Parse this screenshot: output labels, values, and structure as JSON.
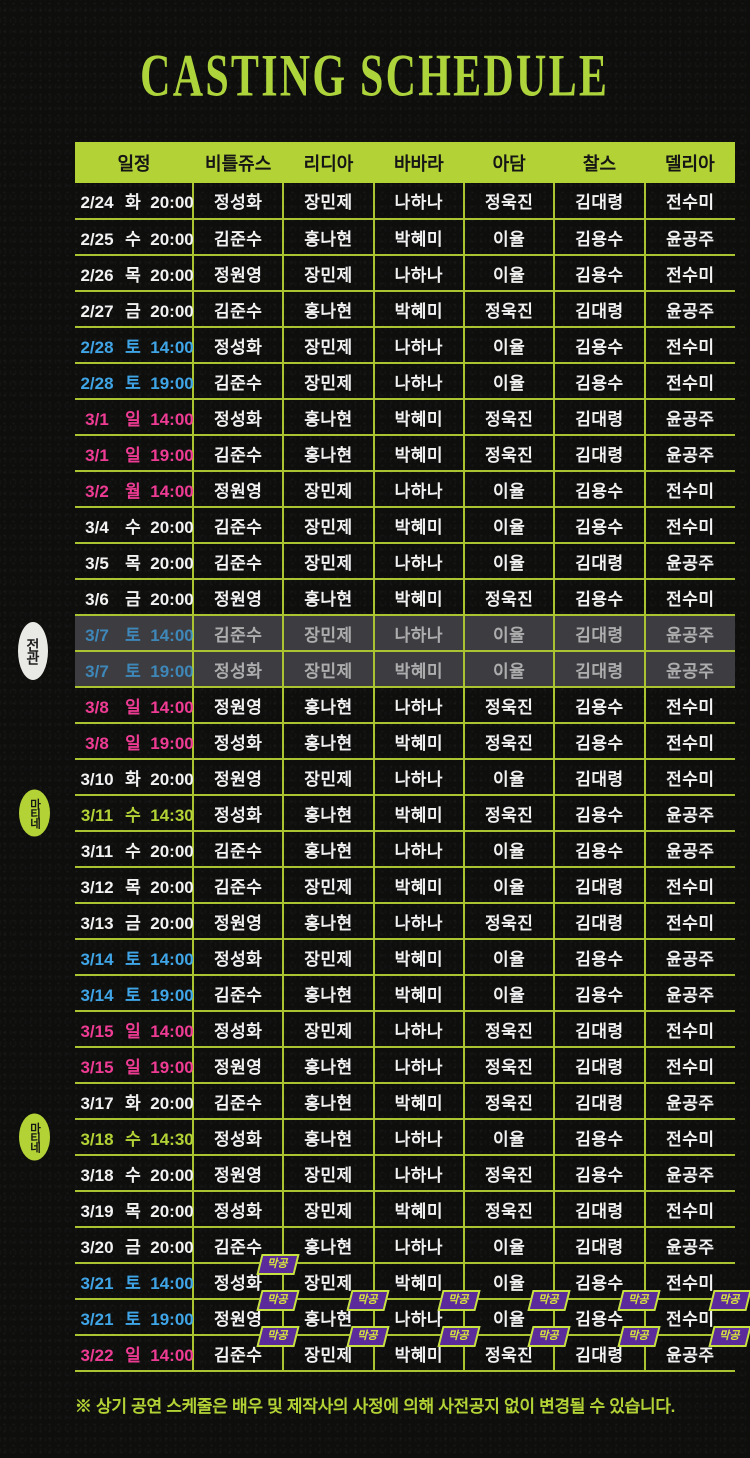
{
  "title": "CASTING SCHEDULE",
  "footer": "※ 상기 공연 스케줄은 배우 및 제작사의 사정에 의해 사전공지 없이 변경될 수 있습니다.",
  "badges": {
    "last_show": "막공"
  },
  "side_badges": [
    {
      "type": "soldout",
      "label": "전관",
      "row": 12,
      "row_span": 2
    },
    {
      "type": "matinee",
      "label": "마티네",
      "row": 17,
      "row_span": 1
    },
    {
      "type": "matinee",
      "label": "마티네",
      "row": 26,
      "row_span": 1
    }
  ],
  "colors": {
    "background": "#0e0e0d",
    "lime": "#b2d235",
    "grid_line": "#a9c430",
    "title_text": "#aed43c",
    "weekday_white": "#f2f2f2",
    "saturday_blue": "#3fa5e6",
    "sunday_pink": "#ee3b93",
    "soldout_row_bg": "#3c3c41",
    "last_show_purple": "#5b2a9b"
  },
  "table": {
    "columns": [
      "일정",
      "비틀쥬스",
      "리디아",
      "바바라",
      "아담",
      "찰스",
      "델리아"
    ],
    "rows": [
      {
        "date": "2/24",
        "day": "화",
        "time": "20:00",
        "color": "white",
        "cast": [
          "정성화",
          "장민제",
          "나하나",
          "정욱진",
          "김대령",
          "전수미"
        ]
      },
      {
        "date": "2/25",
        "day": "수",
        "time": "20:00",
        "color": "white",
        "cast": [
          "김준수",
          "홍나현",
          "박혜미",
          "이율",
          "김용수",
          "윤공주"
        ]
      },
      {
        "date": "2/26",
        "day": "목",
        "time": "20:00",
        "color": "white",
        "cast": [
          "정원영",
          "장민제",
          "나하나",
          "이율",
          "김용수",
          "전수미"
        ]
      },
      {
        "date": "2/27",
        "day": "금",
        "time": "20:00",
        "color": "white",
        "cast": [
          "김준수",
          "홍나현",
          "박혜미",
          "정욱진",
          "김대령",
          "윤공주"
        ]
      },
      {
        "date": "2/28",
        "day": "토",
        "time": "14:00",
        "color": "blue",
        "cast": [
          "정성화",
          "장민제",
          "나하나",
          "이율",
          "김용수",
          "전수미"
        ]
      },
      {
        "date": "2/28",
        "day": "토",
        "time": "19:00",
        "color": "blue",
        "cast": [
          "김준수",
          "장민제",
          "나하나",
          "이율",
          "김용수",
          "전수미"
        ]
      },
      {
        "date": "3/1",
        "day": "일",
        "time": "14:00",
        "color": "pink",
        "cast": [
          "정성화",
          "홍나현",
          "박혜미",
          "정욱진",
          "김대령",
          "윤공주"
        ]
      },
      {
        "date": "3/1",
        "day": "일",
        "time": "19:00",
        "color": "pink",
        "cast": [
          "김준수",
          "홍나현",
          "박혜미",
          "정욱진",
          "김대령",
          "윤공주"
        ]
      },
      {
        "date": "3/2",
        "day": "월",
        "time": "14:00",
        "color": "pink",
        "cast": [
          "정원영",
          "장민제",
          "나하나",
          "이율",
          "김용수",
          "전수미"
        ]
      },
      {
        "date": "3/4",
        "day": "수",
        "time": "20:00",
        "color": "white",
        "cast": [
          "김준수",
          "장민제",
          "박혜미",
          "이율",
          "김용수",
          "전수미"
        ]
      },
      {
        "date": "3/5",
        "day": "목",
        "time": "20:00",
        "color": "white",
        "cast": [
          "김준수",
          "장민제",
          "나하나",
          "이율",
          "김대령",
          "윤공주"
        ]
      },
      {
        "date": "3/6",
        "day": "금",
        "time": "20:00",
        "color": "white",
        "cast": [
          "정원영",
          "홍나현",
          "박혜미",
          "정욱진",
          "김용수",
          "전수미"
        ]
      },
      {
        "date": "3/7",
        "day": "토",
        "time": "14:00",
        "color": "blue",
        "soldout": true,
        "cast": [
          "김준수",
          "장민제",
          "나하나",
          "이율",
          "김대령",
          "윤공주"
        ]
      },
      {
        "date": "3/7",
        "day": "토",
        "time": "19:00",
        "color": "blue",
        "soldout": true,
        "cast": [
          "정성화",
          "장민제",
          "박혜미",
          "이율",
          "김대령",
          "윤공주"
        ]
      },
      {
        "date": "3/8",
        "day": "일",
        "time": "14:00",
        "color": "pink",
        "cast": [
          "정원영",
          "홍나현",
          "나하나",
          "정욱진",
          "김용수",
          "전수미"
        ]
      },
      {
        "date": "3/8",
        "day": "일",
        "time": "19:00",
        "color": "pink",
        "cast": [
          "정성화",
          "홍나현",
          "박혜미",
          "정욱진",
          "김용수",
          "전수미"
        ]
      },
      {
        "date": "3/10",
        "day": "화",
        "time": "20:00",
        "color": "white",
        "cast": [
          "정원영",
          "장민제",
          "나하나",
          "이율",
          "김대령",
          "전수미"
        ]
      },
      {
        "date": "3/11",
        "day": "수",
        "time": "14:30",
        "color": "lime",
        "cast": [
          "정성화",
          "홍나현",
          "박혜미",
          "정욱진",
          "김용수",
          "윤공주"
        ]
      },
      {
        "date": "3/11",
        "day": "수",
        "time": "20:00",
        "color": "white",
        "cast": [
          "김준수",
          "홍나현",
          "나하나",
          "이율",
          "김용수",
          "윤공주"
        ]
      },
      {
        "date": "3/12",
        "day": "목",
        "time": "20:00",
        "color": "white",
        "cast": [
          "김준수",
          "장민제",
          "박혜미",
          "이율",
          "김대령",
          "전수미"
        ]
      },
      {
        "date": "3/13",
        "day": "금",
        "time": "20:00",
        "color": "white",
        "cast": [
          "정원영",
          "홍나현",
          "나하나",
          "정욱진",
          "김대령",
          "전수미"
        ]
      },
      {
        "date": "3/14",
        "day": "토",
        "time": "14:00",
        "color": "blue",
        "cast": [
          "정성화",
          "장민제",
          "박혜미",
          "이율",
          "김용수",
          "윤공주"
        ]
      },
      {
        "date": "3/14",
        "day": "토",
        "time": "19:00",
        "color": "blue",
        "cast": [
          "김준수",
          "홍나현",
          "박혜미",
          "이율",
          "김용수",
          "윤공주"
        ]
      },
      {
        "date": "3/15",
        "day": "일",
        "time": "14:00",
        "color": "pink",
        "cast": [
          "정성화",
          "장민제",
          "나하나",
          "정욱진",
          "김대령",
          "전수미"
        ]
      },
      {
        "date": "3/15",
        "day": "일",
        "time": "19:00",
        "color": "pink",
        "cast": [
          "정원영",
          "홍나현",
          "나하나",
          "정욱진",
          "김대령",
          "전수미"
        ]
      },
      {
        "date": "3/17",
        "day": "화",
        "time": "20:00",
        "color": "white",
        "cast": [
          "김준수",
          "홍나현",
          "박혜미",
          "정욱진",
          "김대령",
          "윤공주"
        ]
      },
      {
        "date": "3/18",
        "day": "수",
        "time": "14:30",
        "color": "lime",
        "cast": [
          "정성화",
          "홍나현",
          "나하나",
          "이율",
          "김용수",
          "전수미"
        ]
      },
      {
        "date": "3/18",
        "day": "수",
        "time": "20:00",
        "color": "white",
        "cast": [
          "정원영",
          "장민제",
          "나하나",
          "정욱진",
          "김용수",
          "윤공주"
        ]
      },
      {
        "date": "3/19",
        "day": "목",
        "time": "20:00",
        "color": "white",
        "cast": [
          "정성화",
          "장민제",
          "박혜미",
          "정욱진",
          "김대령",
          "전수미"
        ]
      },
      {
        "date": "3/20",
        "day": "금",
        "time": "20:00",
        "color": "white",
        "cast": [
          "김준수",
          "홍나현",
          "나하나",
          "이율",
          "김대령",
          "윤공주"
        ]
      },
      {
        "date": "3/21",
        "day": "토",
        "time": "14:00",
        "color": "blue",
        "cast": [
          "정성화",
          "장민제",
          "박혜미",
          "이율",
          "김용수",
          "전수미"
        ],
        "last": [
          0
        ]
      },
      {
        "date": "3/21",
        "day": "토",
        "time": "19:00",
        "color": "blue",
        "cast": [
          "정원영",
          "홍나현",
          "나하나",
          "이율",
          "김용수",
          "전수미"
        ],
        "last": [
          0,
          1,
          2,
          3,
          4,
          5
        ]
      },
      {
        "date": "3/22",
        "day": "일",
        "time": "14:00",
        "color": "pink",
        "cast": [
          "김준수",
          "장민제",
          "박혜미",
          "정욱진",
          "김대령",
          "윤공주"
        ],
        "last": [
          0,
          1,
          2,
          3,
          4,
          5
        ]
      }
    ]
  }
}
